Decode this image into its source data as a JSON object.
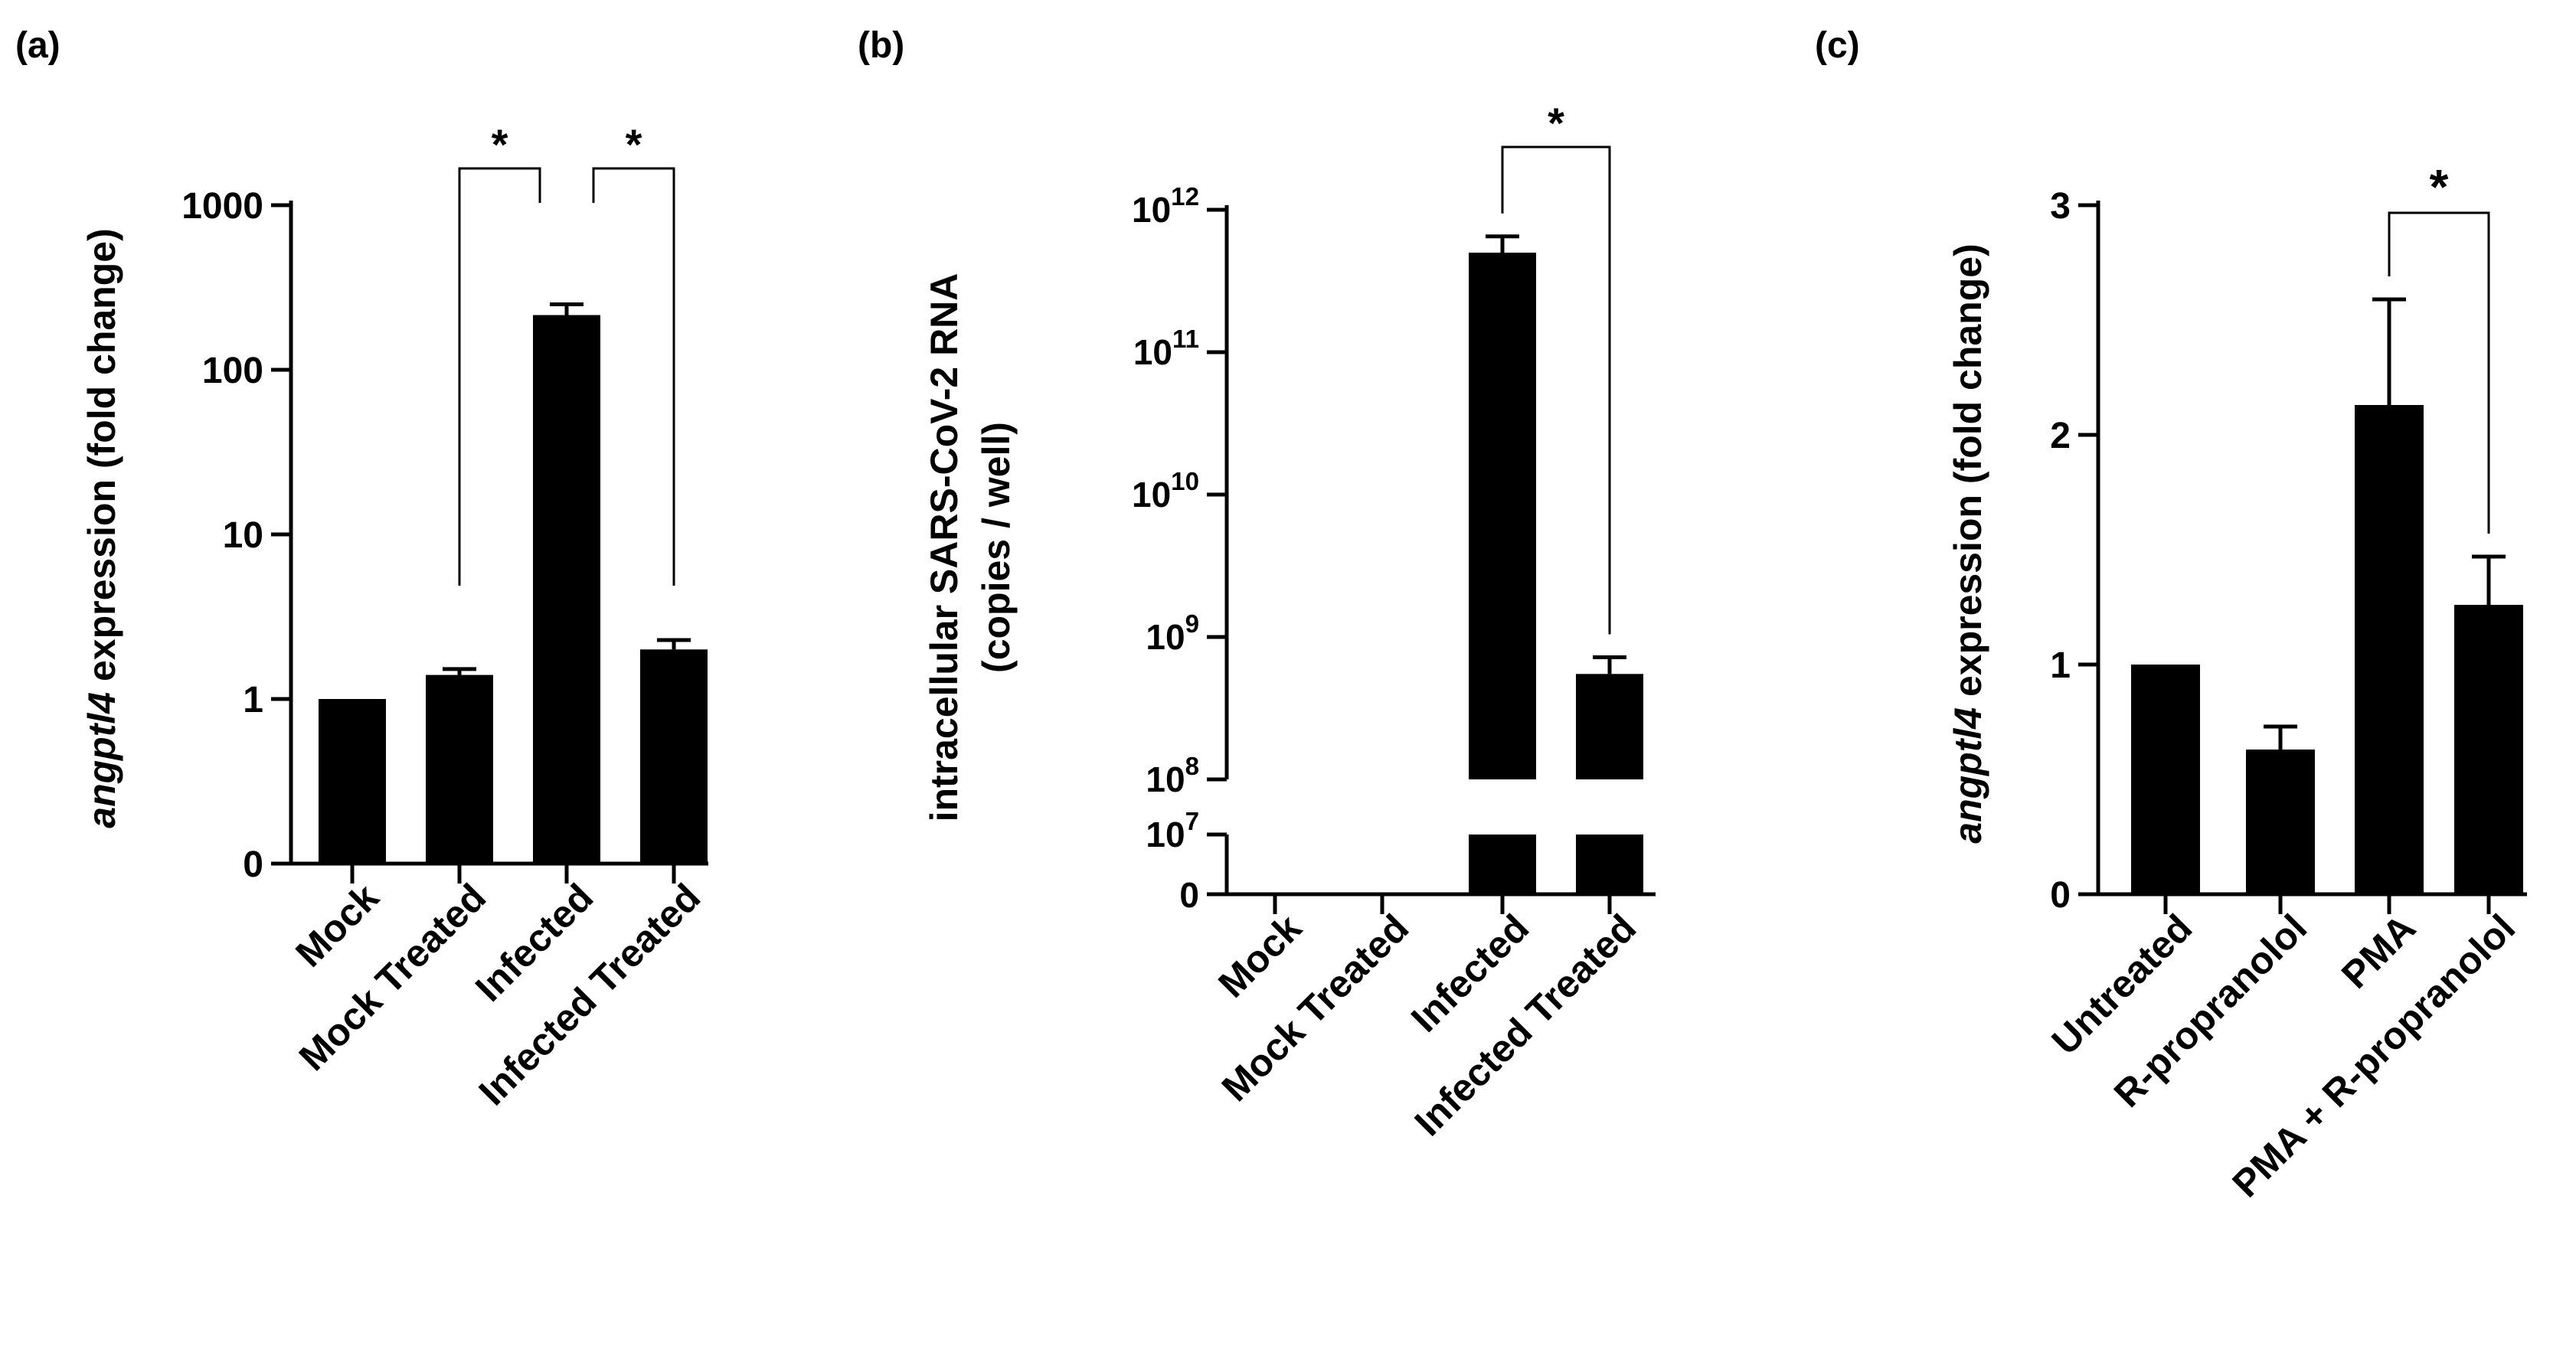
{
  "chart_data": [
    {
      "panel_label": "(a)",
      "type": "bar",
      "scale": "log",
      "ylabel_italic": "angptl4",
      "ylabel_rest": " expression (fold change)",
      "y_ticks": [
        {
          "value": 0,
          "label": "0"
        },
        {
          "value": 1,
          "label": "1"
        },
        {
          "value": 10,
          "label": "10"
        },
        {
          "value": 100,
          "label": "100"
        },
        {
          "value": 1000,
          "label": "1000"
        }
      ],
      "categories": [
        "Mock",
        "Mock Treated",
        "Infected",
        "Infected Treated"
      ],
      "values": [
        1,
        1.4,
        215,
        2.0
      ],
      "errors": [
        0,
        0.12,
        35,
        0.28
      ],
      "significance": [
        {
          "from": 1,
          "to": 2,
          "label": "*"
        },
        {
          "from": 2,
          "to": 3,
          "label": "*"
        }
      ]
    },
    {
      "panel_label": "(b)",
      "type": "bar",
      "scale": "log-broken",
      "ylabel_line1": "intracellular SARS-CoV-2 RNA",
      "ylabel_line2": "(copies / well)",
      "y_ticks": [
        {
          "value": 0,
          "label": "0"
        },
        {
          "value": 10000000,
          "base": "10",
          "exp": "7"
        },
        {
          "value": 100000000,
          "base": "10",
          "exp": "8"
        },
        {
          "value": 1000000000,
          "base": "10",
          "exp": "9"
        },
        {
          "value": 10000000000,
          "base": "10",
          "exp": "10"
        },
        {
          "value": 100000000000,
          "base": "10",
          "exp": "11"
        },
        {
          "value": 1000000000000,
          "base": "10",
          "exp": "12"
        }
      ],
      "categories": [
        "Mock",
        "Mock Treated",
        "Infected",
        "Infected Treated"
      ],
      "values": [
        0,
        0,
        500000000000,
        550000000
      ],
      "errors": [
        0,
        0,
        150000000000,
        170000000
      ],
      "significance": [
        {
          "from": 2,
          "to": 3,
          "label": "*"
        }
      ]
    },
    {
      "panel_label": "(c)",
      "type": "bar",
      "scale": "linear",
      "ylabel_italic": "angptl4",
      "ylabel_rest": " expression (fold change)",
      "ylim": [
        0,
        3
      ],
      "y_ticks": [
        {
          "value": 0,
          "label": "0"
        },
        {
          "value": 1,
          "label": "1"
        },
        {
          "value": 2,
          "label": "2"
        },
        {
          "value": 3,
          "label": "3"
        }
      ],
      "categories": [
        "Untreated",
        "R-propranolol",
        "PMA",
        "PMA + R-propranolol"
      ],
      "values": [
        1.0,
        0.63,
        2.13,
        1.26
      ],
      "errors": [
        0,
        0.1,
        0.46,
        0.21
      ],
      "significance": [
        {
          "from": 2,
          "to": 3,
          "label": "*"
        }
      ]
    }
  ]
}
